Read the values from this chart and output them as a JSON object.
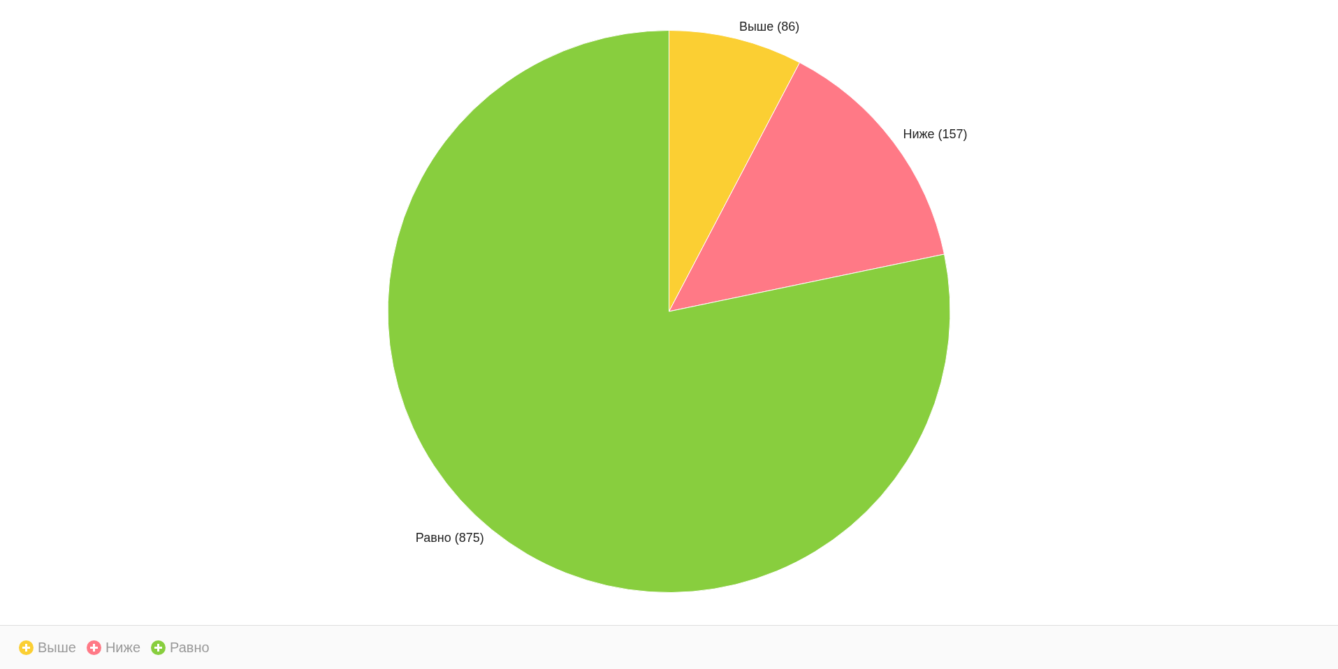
{
  "chart_data": {
    "type": "pie",
    "categories": [
      "Выше",
      "Ниже",
      "Равно"
    ],
    "values": [
      86,
      157,
      875
    ],
    "colors": [
      "#fbcf33",
      "#ff7986",
      "#88ce3e"
    ],
    "value_labels": [
      "Выше (86)",
      "Ниже (157)",
      "Равно (875)"
    ],
    "legend": "bottom left"
  }
}
